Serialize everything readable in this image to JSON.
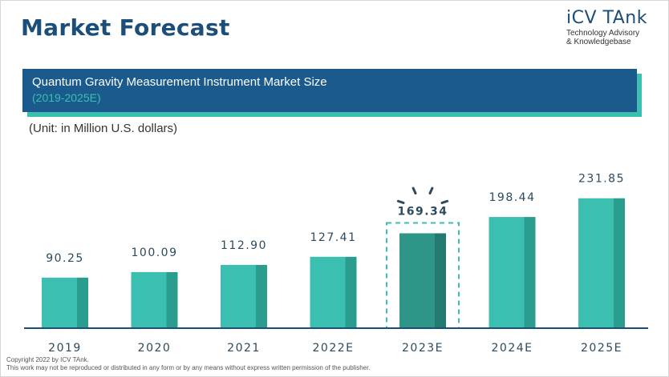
{
  "header": {
    "title": "Market Forecast",
    "brand_name": "iCV TAnk",
    "brand_tagline_1": "Technology Advisory",
    "brand_tagline_2": "& Knowledgebase"
  },
  "banner": {
    "title": "Quantum Gravity Measurement Instrument Market Size",
    "subtitle": "(2019-2025E)"
  },
  "unit_note": "(Unit: in Million U.S. dollars)",
  "footer": {
    "line1": "Copyright  2022 by ICV TAnk.",
    "line2": "This work may not be reproduced or distributed in any form or by any means without express written permission of the publisher."
  },
  "colors": {
    "bar_front": "#3bbfb0",
    "bar_side": "#2a9d8f",
    "highlight_front": "#2e9688",
    "highlight_side": "#237a6f",
    "label_text": "#2c4a5e",
    "axis": "#1b4f7a"
  },
  "chart_data": {
    "type": "bar",
    "categories": [
      "2019",
      "2020",
      "2021",
      "2022E",
      "2023E",
      "2024E",
      "2025E"
    ],
    "values": [
      90.25,
      100.09,
      112.9,
      127.41,
      169.34,
      198.44,
      231.85
    ],
    "value_labels": [
      "90.25",
      "100.09",
      "112.90",
      "127.41",
      "169.34",
      "198.44",
      "231.85"
    ],
    "highlight_index": 4,
    "title": "",
    "xlabel": "",
    "ylabel": "",
    "ylim": [
      0,
      240
    ],
    "grid": false
  }
}
